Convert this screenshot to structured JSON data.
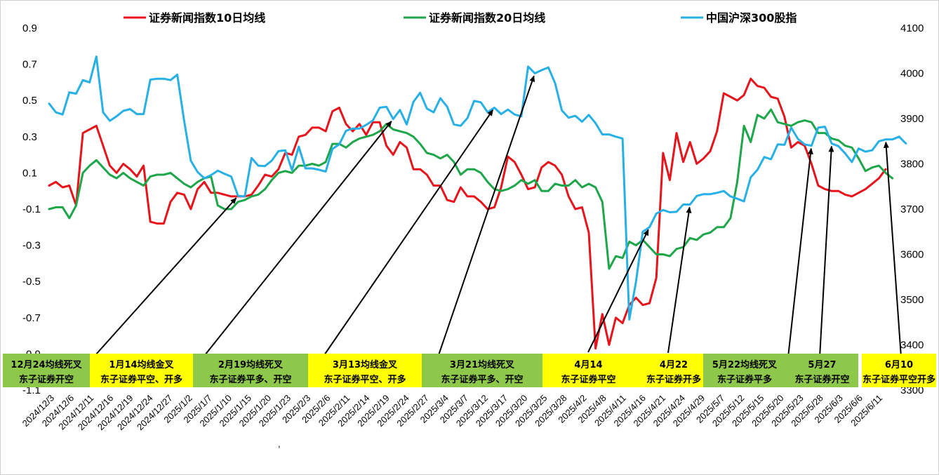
{
  "chart_data": {
    "type": "line",
    "left_axis": {
      "ticks": [
        "0.9",
        "0.7",
        "0.5",
        "0.3",
        "0.1",
        "-0.1",
        "-0.3",
        "-0.5",
        "-0.7",
        "-0.9",
        "-1.1"
      ],
      "ylim": [
        -1.1,
        0.9
      ]
    },
    "right_axis": {
      "ticks": [
        "4100",
        "4000",
        "3900",
        "3800",
        "3700",
        "3600",
        "3500",
        "3400",
        "3300"
      ],
      "ylim": [
        3300,
        4100
      ]
    },
    "x_tick_labels": [
      "2024/12/3",
      "2024/12/6",
      "2024/12/11",
      "2024/12/16",
      "2024/12/19",
      "2024/12/24",
      "2024/12/27",
      "2025/1/2",
      "2025/1/7",
      "2025/1/10",
      "2025/1/15",
      "2025/1/20",
      "2025/1/23",
      "2025/2/3",
      "2025/2/6",
      "2025/2/11",
      "2025/2/14",
      "2025/2/19",
      "2025/2/24",
      "2025/2/27",
      "2025/3/4",
      "2025/3/7",
      "2025/3/12",
      "2025/3/17",
      "2025/3/20",
      "2025/3/25",
      "2025/3/28",
      "2025/4/2",
      "2025/4/8",
      "2025/4/11",
      "2025/4/16",
      "2025/4/21",
      "2025/4/24",
      "2025/4/29",
      "2025/5/7",
      "2025/5/12",
      "2025/5/15",
      "2025/5/20",
      "2025/5/23",
      "2025/5/28",
      "2025/6/3",
      "2025/6/6",
      "2025/6/11"
    ],
    "stray_tick_mark": ",",
    "series": [
      {
        "name": "证券新闻指数10日均线",
        "axis": "left",
        "color": "#e8141c",
        "values": [
          0.03,
          0.05,
          0.02,
          0.03,
          -0.08,
          0.32,
          0.34,
          0.36,
          0.25,
          0.14,
          0.1,
          0.15,
          0.12,
          0.08,
          0.14,
          -0.17,
          -0.18,
          -0.18,
          -0.06,
          -0.01,
          -0.02,
          -0.1,
          0.01,
          0.05,
          -0.01,
          -0.01,
          -0.02,
          -0.03,
          -0.03,
          -0.03,
          -0.02,
          0.03,
          0.09,
          0.08,
          0.12,
          0.21,
          0.2,
          0.3,
          0.31,
          0.35,
          0.35,
          0.33,
          0.44,
          0.46,
          0.37,
          0.33,
          0.37,
          0.31,
          0.38,
          0.38,
          0.25,
          0.2,
          0.27,
          0.24,
          0.12,
          0.12,
          0.09,
          0.03,
          0.03,
          -0.05,
          -0.06,
          0.02,
          -0.03,
          -0.03,
          -0.06,
          -0.1,
          -0.09,
          0.02,
          0.19,
          0.16,
          0.09,
          0.01,
          0.02,
          0.13,
          0.16,
          0.14,
          0.09,
          -0.03,
          -0.1,
          -0.09,
          -0.23,
          -0.87,
          -0.68,
          -0.85,
          -0.7,
          -0.73,
          -0.63,
          -0.59,
          -0.63,
          -0.62,
          -0.48,
          0.21,
          0.06,
          0.32,
          0.16,
          0.27,
          0.15,
          0.18,
          0.22,
          0.33,
          0.54,
          0.52,
          0.5,
          0.53,
          0.62,
          0.58,
          0.57,
          0.52,
          0.51,
          0.41,
          0.24,
          0.27,
          0.25,
          0.15,
          0.03,
          0.01,
          0.0,
          0.0,
          -0.02,
          -0.03,
          -0.01,
          0.01,
          0.04,
          0.07,
          0.12
        ]
      },
      {
        "name": "证券新闻指数20日均线",
        "axis": "left",
        "color": "#1da64a",
        "values": [
          -0.1,
          -0.09,
          -0.09,
          -0.15,
          -0.08,
          0.1,
          0.14,
          0.17,
          0.13,
          0.09,
          0.07,
          0.1,
          0.07,
          0.05,
          0.03,
          0.08,
          0.09,
          0.09,
          0.1,
          0.07,
          0.04,
          0.02,
          0.05,
          0.07,
          0.08,
          -0.08,
          -0.1,
          -0.1,
          -0.06,
          -0.05,
          -0.03,
          -0.02,
          0.01,
          0.06,
          0.1,
          0.11,
          0.1,
          0.14,
          0.14,
          0.15,
          0.14,
          0.16,
          0.26,
          0.26,
          0.24,
          0.27,
          0.29,
          0.3,
          0.31,
          0.33,
          0.37,
          0.34,
          0.33,
          0.32,
          0.3,
          0.26,
          0.21,
          0.2,
          0.18,
          0.2,
          0.16,
          0.09,
          0.12,
          0.12,
          0.1,
          0.05,
          0.01,
          0.0,
          0.01,
          0.03,
          0.06,
          0.04,
          0.06,
          0.0,
          0.0,
          0.04,
          0.03,
          0.03,
          0.06,
          0.02,
          0.04,
          0.02,
          -0.06,
          -0.43,
          -0.36,
          -0.37,
          -0.28,
          -0.3,
          -0.27,
          -0.31,
          -0.35,
          -0.35,
          -0.36,
          -0.32,
          -0.31,
          -0.26,
          -0.27,
          -0.24,
          -0.23,
          -0.2,
          -0.2,
          -0.15,
          0.05,
          0.36,
          0.27,
          0.42,
          0.4,
          0.45,
          0.38,
          0.37,
          0.36,
          0.38,
          0.39,
          0.38,
          0.32,
          0.32,
          0.29,
          0.28,
          0.25,
          0.24,
          0.18,
          0.11,
          0.13,
          0.14,
          0.1,
          0.07
        ]
      },
      {
        "name": "中国沪深300股指",
        "axis": "right",
        "color": "#27b0e6",
        "values": [
          3933,
          3914,
          3909,
          3958,
          3955,
          3985,
          3980,
          4037,
          3914,
          3895,
          3905,
          3917,
          3921,
          3910,
          3910,
          3986,
          3988,
          3988,
          3985,
          3997,
          3896,
          3807,
          3782,
          3768,
          3775,
          3785,
          3778,
          3772,
          3729,
          3728,
          3813,
          3796,
          3795,
          3807,
          3828,
          3830,
          3786,
          3838,
          3790,
          3790,
          3787,
          3783,
          3833,
          3843,
          3873,
          3878,
          3878,
          3886,
          3896,
          3924,
          3926,
          3899,
          3919,
          3887,
          3937,
          3957,
          3922,
          3914,
          3945,
          3926,
          3887,
          3884,
          3901,
          3939,
          3936,
          3914,
          3924,
          3910,
          3920,
          3909,
          3905,
          4015,
          4000,
          4007,
          4013,
          3978,
          3918,
          3902,
          3906,
          3893,
          3908,
          3890,
          3865,
          3865,
          3860,
          3856,
          3456,
          3540,
          3650,
          3660,
          3690,
          3698,
          3693,
          3694,
          3710,
          3710,
          3729,
          3733,
          3733,
          3736,
          3740,
          3728,
          3723,
          3717,
          3770,
          3787,
          3815,
          3810,
          3843,
          3842,
          3880,
          3855,
          3843,
          3840,
          3880,
          3882,
          3845,
          3839,
          3823,
          3804,
          3834,
          3827,
          3830,
          3850,
          3854,
          3854,
          3860,
          3845
        ]
      }
    ],
    "legend": {
      "placement": "top",
      "items": [
        "证券新闻指数10日均线",
        "证券新闻指数20日均线",
        "中国沪深300股指"
      ]
    },
    "annotations": [
      {
        "line1": "12月24均线死叉",
        "line2": "东子证券开空",
        "bg": "#8dc84a",
        "arrow_to": 14
      },
      {
        "line1": "1月14均线金叉",
        "line2": "东子证券平空、开多",
        "bg": "#ffff00",
        "arrow_to": 28
      },
      {
        "line1": "2月19均线死叉",
        "line2": "东子证券平多、开空",
        "bg": "#8dc84a",
        "arrow_to": 51
      },
      {
        "line1": "3月13均线金叉",
        "line2": "东子证券平空、开多",
        "bg": "#ffff00",
        "arrow_to": 66
      },
      {
        "line1": "3月21均线死叉",
        "line2": "东子证券平多、开空",
        "bg": "#8dc84a",
        "arrow_to": 72
      },
      {
        "line1": "4月14",
        "line2": "东子证券平空",
        "bg": "#ffff00",
        "arrow_to": 89
      },
      {
        "line1": "4月22",
        "line2": "东子证券开多",
        "bg": "#ffff00",
        "arrow_to": 95
      },
      {
        "line1": "5月22均线死叉",
        "line2": "东子证券平多",
        "bg": "#8dc84a",
        "arrow_to": 113
      },
      {
        "line1": "5月27",
        "line2": "东子证券开空",
        "bg": "#8dc84a",
        "arrow_to": 116
      },
      {
        "line1": "6月10",
        "line2": "东子证券平空开多",
        "bg": "#ffff00",
        "arrow_to": 124
      }
    ]
  }
}
